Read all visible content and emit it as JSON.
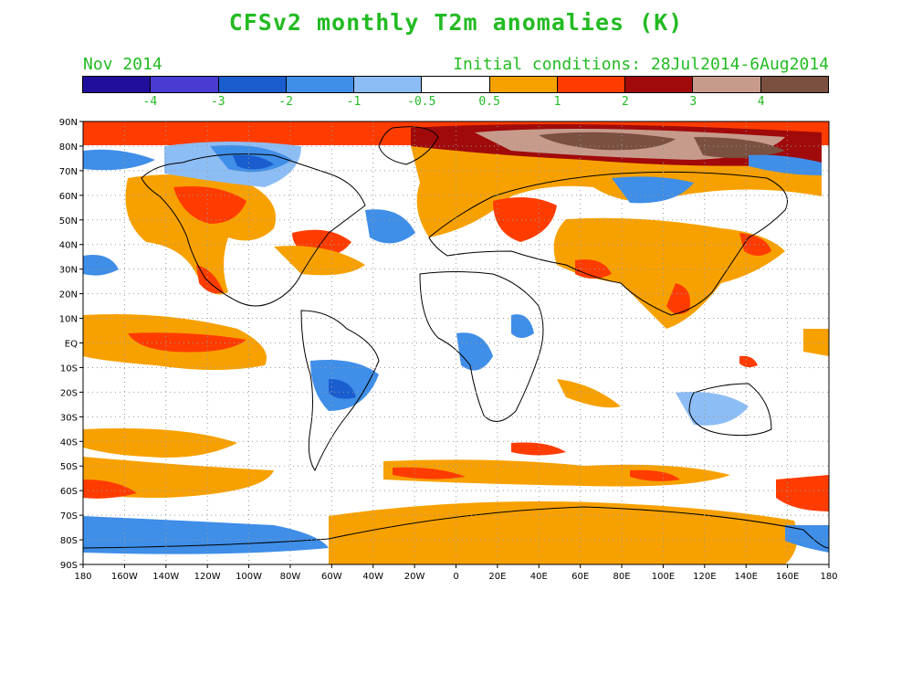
{
  "title": "CFSv2 monthly T2m anomalies (K)",
  "month": "Nov 2014",
  "initial_conditions": "Initial conditions: 28Jul2014-6Aug2014",
  "colorbar": {
    "colors": [
      "#1f0f9a",
      "#4a3cd0",
      "#1a5dcf",
      "#3f8ee8",
      "#8dbdf5",
      "#ffffff",
      "#f7a100",
      "#ff3c00",
      "#a00a0a",
      "#c79b8c",
      "#7a5040"
    ],
    "labels": [
      "-4",
      "-3",
      "-2",
      "-1",
      "-0.5",
      "0.5",
      "1",
      "2",
      "3",
      "4"
    ]
  },
  "lat_labels": [
    "90N",
    "80N",
    "70N",
    "60N",
    "50N",
    "40N",
    "30N",
    "20N",
    "10N",
    "EQ",
    "10S",
    "20S",
    "30S",
    "40S",
    "50S",
    "60S",
    "70S",
    "80S",
    "90S"
  ],
  "lon_labels": [
    "180",
    "160W",
    "140W",
    "120W",
    "100W",
    "80W",
    "60W",
    "40W",
    "20W",
    "0",
    "20E",
    "40E",
    "60E",
    "80E",
    "100E",
    "120E",
    "140E",
    "160E",
    "180"
  ]
}
